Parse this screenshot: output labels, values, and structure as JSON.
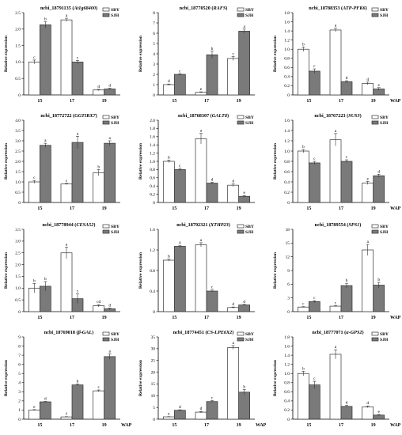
{
  "legend_labels": [
    "SBY",
    "SJH"
  ],
  "colors": {
    "SBY": "#ffffff",
    "SJH": "#7a7a7a",
    "axis": "#000000"
  },
  "x_unit_label": "WAP",
  "chart_data": [
    {
      "type": "bar",
      "title_prefix": "ncbi_18791135 (",
      "title_gene": "At1g68400",
      "title_suffix": ")",
      "ylabel": "Relative expression",
      "categories": [
        "15",
        "17",
        "19"
      ],
      "ylim": [
        0,
        2.5
      ],
      "yticks": [
        "0",
        "0.5",
        "1.0",
        "1.5",
        "2.0",
        "2.5"
      ],
      "xlabel": "",
      "series": [
        {
          "name": "SBY",
          "values": [
            1.0,
            2.28,
            0.15
          ],
          "errors": [
            0.06,
            0.05,
            0.02
          ],
          "letters": [
            "c",
            "a",
            "d"
          ]
        },
        {
          "name": "SJH",
          "values": [
            2.13,
            1.0,
            0.18
          ],
          "errors": [
            0.09,
            0.05,
            0.02
          ],
          "letters": [
            "b",
            "c",
            "d"
          ]
        }
      ]
    },
    {
      "type": "bar",
      "title_prefix": "ncbi_18770520 (",
      "title_gene": "RAFS",
      "title_suffix": ")",
      "ylabel": "Relative expression",
      "categories": [
        "15",
        "17",
        "19"
      ],
      "ylim": [
        0,
        8
      ],
      "yticks": [
        "0",
        "1",
        "2",
        "3",
        "4",
        "5",
        "6",
        "7",
        "8"
      ],
      "xlabel": "",
      "series": [
        {
          "name": "SBY",
          "values": [
            1.0,
            0.25,
            3.55
          ],
          "errors": [
            0.06,
            0.05,
            0.2
          ],
          "letters": [
            "d",
            "e",
            "c"
          ]
        },
        {
          "name": "SJH",
          "values": [
            2.0,
            3.9,
            6.2
          ],
          "errors": [
            0.05,
            0.35,
            0.2
          ],
          "letters": [
            "c",
            "b",
            "a"
          ]
        }
      ]
    },
    {
      "type": "bar",
      "title_prefix": "ncbi_18788353 (",
      "title_gene": "ATP-PFK6",
      "title_suffix": ")",
      "ylabel": "Relative expression",
      "categories": [
        "15",
        "17",
        "19"
      ],
      "ylim": [
        0,
        1.8
      ],
      "yticks": [
        "0",
        "0.2",
        "0.4",
        "0.6",
        "0.8",
        "1.0",
        "1.2",
        "1.4",
        "1.6",
        "1.8"
      ],
      "xlabel": "WAP",
      "series": [
        {
          "name": "SBY",
          "values": [
            1.0,
            1.42,
            0.25
          ],
          "errors": [
            0.05,
            0.04,
            0.03
          ],
          "letters": [
            "b",
            "a",
            "d"
          ]
        },
        {
          "name": "SJH",
          "values": [
            0.52,
            0.29,
            0.13
          ],
          "errors": [
            0.05,
            0.02,
            0.03
          ],
          "letters": [
            "c",
            "d",
            "e"
          ]
        }
      ]
    },
    {
      "type": "bar",
      "title_prefix": "ncbi_18772722 (",
      "title_gene": "GGTIRX7",
      "title_suffix": ")",
      "ylabel": "Relative expression",
      "categories": [
        "15",
        "17",
        "19"
      ],
      "ylim": [
        0,
        4.0
      ],
      "yticks": [
        "0",
        "0.5",
        "1.0",
        "1.5",
        "2.0",
        "2.5",
        "3.0",
        "3.5",
        "4.0"
      ],
      "xlabel": "",
      "series": [
        {
          "name": "SBY",
          "values": [
            1.0,
            0.9,
            1.45
          ],
          "errors": [
            0.07,
            0.03,
            0.15
          ],
          "letters": [
            "c",
            "c",
            "b"
          ]
        },
        {
          "name": "SJH",
          "values": [
            2.78,
            2.92,
            2.88
          ],
          "errors": [
            0.1,
            0.3,
            0.12
          ],
          "letters": [
            "a",
            "a",
            "a"
          ]
        }
      ]
    },
    {
      "type": "bar",
      "title_prefix": "ncbi_18768307 (",
      "title_gene": "GALT8",
      "title_suffix": ")",
      "ylabel": "Relative expression",
      "categories": [
        "15",
        "17",
        "19"
      ],
      "ylim": [
        0,
        2.0
      ],
      "yticks": [
        "0",
        "0.2",
        "0.4",
        "0.6",
        "0.8",
        "1.0",
        "1.2",
        "1.4",
        "1.6",
        "1.8",
        "2.0"
      ],
      "xlabel": "",
      "series": [
        {
          "name": "SBY",
          "values": [
            1.0,
            1.55,
            0.42
          ],
          "errors": [
            0.03,
            0.13,
            0.03
          ],
          "letters": [
            "b",
            "a",
            "d"
          ]
        },
        {
          "name": "SJH",
          "values": [
            0.8,
            0.47,
            0.15
          ],
          "errors": [
            0.03,
            0.02,
            0.02
          ],
          "letters": [
            "c",
            "d",
            "e"
          ]
        }
      ]
    },
    {
      "type": "bar",
      "title_prefix": "ncbi_18767223 (",
      "title_gene": "SUS3",
      "title_suffix": ")",
      "ylabel": "Relative expression",
      "categories": [
        "15",
        "17",
        "19"
      ],
      "ylim": [
        0,
        1.6
      ],
      "yticks": [
        "0",
        "0.2",
        "0.4",
        "0.6",
        "0.8",
        "1.0",
        "1.2",
        "1.4",
        "1.6"
      ],
      "xlabel": "WAP",
      "series": [
        {
          "name": "SBY",
          "values": [
            1.0,
            1.22,
            0.38
          ],
          "errors": [
            0.03,
            0.12,
            0.03
          ],
          "letters": [
            "b",
            "a",
            "e"
          ]
        },
        {
          "name": "SJH",
          "values": [
            0.77,
            0.8,
            0.52
          ],
          "errors": [
            0.03,
            0.03,
            0.03
          ],
          "letters": [
            "c",
            "c",
            "d"
          ]
        }
      ]
    },
    {
      "type": "bar",
      "title_prefix": "ncbi_18778944 (",
      "title_gene": "CESA52",
      "title_suffix": ")",
      "ylabel": "Relative expression",
      "categories": [
        "15",
        "17",
        "19"
      ],
      "ylim": [
        0,
        3.5
      ],
      "yticks": [
        "0",
        "0.5",
        "1.0",
        "1.5",
        "2.0",
        "2.5",
        "3.0",
        "3.5"
      ],
      "xlabel": "",
      "series": [
        {
          "name": "SBY",
          "values": [
            1.0,
            2.5,
            0.25
          ],
          "errors": [
            0.2,
            0.25,
            0.05
          ],
          "letters": [
            "b",
            "a",
            "cd"
          ]
        },
        {
          "name": "SJH",
          "values": [
            1.08,
            0.55,
            0.12
          ],
          "errors": [
            0.2,
            0.2,
            0.03
          ],
          "letters": [
            "b",
            "c",
            "d"
          ]
        }
      ]
    },
    {
      "type": "bar",
      "title_prefix": "ncbi_18792321 (",
      "title_gene": "XTHP23",
      "title_suffix": ")",
      "ylabel": "Relative expression",
      "categories": [
        "15",
        "17",
        "19"
      ],
      "ylim": [
        0,
        1.6
      ],
      "yticks": [
        "0",
        "0.4",
        "0.8",
        "1.2",
        "1.6"
      ],
      "xlabel": "",
      "series": [
        {
          "name": "SBY",
          "values": [
            1.0,
            1.3,
            0.08
          ],
          "errors": [
            0.02,
            0.04,
            0.01
          ],
          "letters": [
            "b",
            "a",
            "d"
          ]
        },
        {
          "name": "SJH",
          "values": [
            1.27,
            0.4,
            0.13
          ],
          "errors": [
            0.02,
            0.02,
            0.01
          ],
          "letters": [
            "a",
            "c",
            "d"
          ]
        }
      ]
    },
    {
      "type": "bar",
      "title_prefix": "ncbi_18789554 (",
      "title_gene": "SPS1",
      "title_suffix": ")",
      "ylabel": "Relative expression",
      "categories": [
        "15",
        "17",
        "19"
      ],
      "ylim": [
        0,
        18
      ],
      "yticks": [
        "0",
        "3",
        "6",
        "9",
        "12",
        "15",
        "18"
      ],
      "xlabel": "WAP",
      "series": [
        {
          "name": "SBY",
          "values": [
            1.0,
            1.2,
            13.5
          ],
          "errors": [
            0.1,
            0.1,
            1.2
          ],
          "letters": [
            "c",
            "c",
            "a"
          ]
        },
        {
          "name": "SJH",
          "values": [
            2.2,
            5.7,
            5.8
          ],
          "errors": [
            0.2,
            0.5,
            0.6
          ],
          "letters": [
            "c",
            "b",
            "b"
          ]
        }
      ]
    },
    {
      "type": "bar",
      "title_prefix": "ncbi_18769018 (",
      "title_gene": "β-GAL",
      "title_suffix": ")",
      "ylabel": "Relative expression",
      "categories": [
        "15",
        "17",
        "19"
      ],
      "ylim": [
        0,
        9
      ],
      "yticks": [
        "0",
        "1",
        "2",
        "3",
        "4",
        "5",
        "6",
        "7",
        "8",
        "9"
      ],
      "xlabel": "WAP",
      "series": [
        {
          "name": "SBY",
          "values": [
            1.0,
            0.25,
            3.1
          ],
          "errors": [
            0.05,
            0.03,
            0.1
          ],
          "letters": [
            "e",
            "f",
            "c"
          ]
        },
        {
          "name": "SJH",
          "values": [
            1.9,
            3.75,
            6.85
          ],
          "errors": [
            0.05,
            0.1,
            0.3
          ],
          "letters": [
            "d",
            "b",
            "a"
          ]
        }
      ]
    },
    {
      "type": "bar",
      "title_prefix": "ncbi_18774451 (",
      "title_gene": "CS-LPE6X2",
      "title_suffix": ")",
      "ylabel": "Relative expression",
      "categories": [
        "15",
        "17",
        "19"
      ],
      "ylim": [
        0,
        35
      ],
      "yticks": [
        "0",
        "5",
        "10",
        "15",
        "20",
        "25",
        "30",
        "35"
      ],
      "xlabel": "WAP",
      "series": [
        {
          "name": "SBY",
          "values": [
            1.0,
            3.0,
            30.5
          ],
          "errors": [
            0.1,
            0.3,
            0.8
          ],
          "letters": [
            "e",
            "d",
            "a"
          ]
        },
        {
          "name": "SJH",
          "values": [
            3.8,
            7.5,
            11.5
          ],
          "errors": [
            0.2,
            0.4,
            1.2
          ],
          "letters": [
            "d",
            "c",
            "b"
          ]
        }
      ]
    },
    {
      "type": "bar",
      "title_prefix": "ncbi_18777071 (",
      "title_gene": "α-GPS2",
      "title_suffix": ")",
      "ylabel": "Relative expression",
      "categories": [
        "15",
        "17",
        "19"
      ],
      "ylim": [
        0,
        1.8
      ],
      "yticks": [
        "0",
        "0.2",
        "0.4",
        "0.6",
        "0.8",
        "1.0",
        "1.2",
        "1.4",
        "1.6",
        "1.8"
      ],
      "xlabel": "WAP",
      "series": [
        {
          "name": "SBY",
          "values": [
            1.0,
            1.42,
            0.27
          ],
          "errors": [
            0.05,
            0.1,
            0.02
          ],
          "letters": [
            "b",
            "a",
            "d"
          ]
        },
        {
          "name": "SJH",
          "values": [
            0.75,
            0.28,
            0.09
          ],
          "errors": [
            0.08,
            0.02,
            0.01
          ],
          "letters": [
            "c",
            "d",
            "e"
          ]
        }
      ]
    }
  ]
}
